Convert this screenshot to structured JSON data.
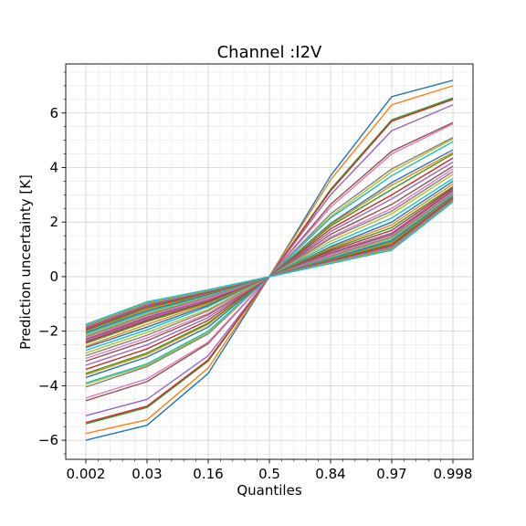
{
  "chart_data": {
    "type": "line",
    "title": "Channel :I2V",
    "xlabel": "Quantiles",
    "ylabel": "Prediction uncertainty [K]",
    "categories": [
      "0.002",
      "0.03",
      "0.16",
      "0.5",
      "0.84",
      "0.97",
      "0.998"
    ],
    "ylim": [
      -6.7,
      7.8
    ],
    "yticks": [
      -6,
      -4,
      -2,
      0,
      2,
      4,
      6
    ],
    "ytick_labels": [
      "−6",
      "−4",
      "−2",
      "0",
      "2",
      "4",
      "6"
    ],
    "grid": true,
    "legend": "none",
    "colors": [
      "#1f77b4",
      "#ff7f0e",
      "#2ca02c",
      "#d62728",
      "#9467bd",
      "#8c564b",
      "#e377c2",
      "#7f7f7f",
      "#bcbd22",
      "#17becf"
    ],
    "series": [
      {
        "values": [
          -6.0,
          -5.45,
          -3.55,
          0,
          3.7,
          6.6,
          7.2
        ]
      },
      {
        "values": [
          -5.75,
          -5.25,
          -3.35,
          0,
          3.55,
          6.3,
          7.0
        ]
      },
      {
        "values": [
          -5.4,
          -4.8,
          -3.1,
          0,
          3.2,
          5.75,
          6.55
        ]
      },
      {
        "values": [
          -5.35,
          -4.75,
          -3.05,
          0,
          3.15,
          5.7,
          6.5
        ]
      },
      {
        "values": [
          -5.1,
          -4.5,
          -2.9,
          0,
          3.0,
          5.35,
          6.3
        ]
      },
      {
        "values": [
          -4.55,
          -3.85,
          -2.45,
          0,
          2.65,
          4.6,
          5.65
        ]
      },
      {
        "values": [
          -4.45,
          -3.75,
          -2.4,
          0,
          2.55,
          4.5,
          5.6
        ]
      },
      {
        "values": [
          -4.05,
          -3.3,
          -2.1,
          0,
          2.3,
          3.95,
          5.1
        ]
      },
      {
        "values": [
          -3.95,
          -3.25,
          -2.05,
          0,
          2.2,
          3.85,
          5.05
        ]
      },
      {
        "values": [
          -3.9,
          -3.2,
          -2.0,
          0,
          2.15,
          3.7,
          4.95
        ]
      },
      {
        "values": [
          -3.7,
          -2.95,
          -1.85,
          0,
          1.95,
          3.45,
          4.65
        ]
      },
      {
        "values": [
          -3.6,
          -2.85,
          -1.75,
          0,
          1.9,
          3.35,
          4.55
        ]
      },
      {
        "values": [
          -3.55,
          -2.8,
          -1.7,
          0,
          1.85,
          3.2,
          4.5
        ]
      },
      {
        "values": [
          -3.4,
          -2.65,
          -1.6,
          0,
          1.75,
          3.0,
          4.35
        ]
      },
      {
        "values": [
          -3.25,
          -2.5,
          -1.5,
          0,
          1.65,
          2.85,
          4.2
        ]
      },
      {
        "values": [
          -3.1,
          -2.35,
          -1.4,
          0,
          1.55,
          2.65,
          4.05
        ]
      },
      {
        "values": [
          -3.0,
          -2.25,
          -1.35,
          0,
          1.45,
          2.5,
          3.95
        ]
      },
      {
        "values": [
          -2.9,
          -2.15,
          -1.25,
          0,
          1.4,
          2.4,
          3.85
        ]
      },
      {
        "values": [
          -2.8,
          -2.05,
          -1.2,
          0,
          1.3,
          2.3,
          3.75
        ]
      },
      {
        "values": [
          -2.7,
          -1.95,
          -1.1,
          0,
          1.2,
          2.15,
          3.6
        ]
      },
      {
        "values": [
          -2.6,
          -1.85,
          -1.05,
          0,
          1.1,
          2.0,
          3.5
        ]
      },
      {
        "values": [
          -2.55,
          -1.75,
          -1.0,
          0,
          1.05,
          1.9,
          3.4
        ]
      },
      {
        "values": [
          -2.45,
          -1.65,
          -0.95,
          0,
          1.0,
          1.8,
          3.3
        ]
      },
      {
        "values": [
          -2.4,
          -1.6,
          -0.9,
          0,
          0.95,
          1.7,
          3.25
        ]
      },
      {
        "values": [
          -2.35,
          -1.55,
          -0.85,
          0,
          0.9,
          1.6,
          3.2
        ]
      },
      {
        "values": [
          -2.3,
          -1.5,
          -0.8,
          0,
          0.85,
          1.55,
          3.15
        ]
      },
      {
        "values": [
          -2.25,
          -1.45,
          -0.8,
          0,
          0.8,
          1.5,
          3.1
        ]
      },
      {
        "values": [
          -2.2,
          -1.4,
          -0.75,
          0,
          0.75,
          1.45,
          3.05
        ]
      },
      {
        "values": [
          -2.15,
          -1.35,
          -0.7,
          0,
          0.7,
          1.4,
          3.0
        ]
      },
      {
        "values": [
          -2.1,
          -1.3,
          -0.68,
          0,
          0.68,
          1.35,
          2.98
        ]
      },
      {
        "values": [
          -2.05,
          -1.25,
          -0.65,
          0,
          0.65,
          1.3,
          2.95
        ]
      },
      {
        "values": [
          -2.0,
          -1.2,
          -0.62,
          0,
          0.62,
          1.25,
          2.92
        ]
      },
      {
        "values": [
          -1.97,
          -1.15,
          -0.6,
          0,
          0.6,
          1.2,
          2.9
        ]
      },
      {
        "values": [
          -1.93,
          -1.1,
          -0.58,
          0,
          0.58,
          1.15,
          2.88
        ]
      },
      {
        "values": [
          -1.9,
          -1.07,
          -0.56,
          0,
          0.56,
          1.12,
          2.85
        ]
      },
      {
        "values": [
          -1.87,
          -1.04,
          -0.55,
          0,
          0.55,
          1.1,
          2.83
        ]
      },
      {
        "values": [
          -1.84,
          -1.01,
          -0.53,
          0,
          0.53,
          1.07,
          2.8
        ]
      },
      {
        "values": [
          -1.81,
          -0.98,
          -0.52,
          0,
          0.52,
          1.04,
          2.78
        ]
      },
      {
        "values": [
          -1.78,
          -0.95,
          -0.5,
          0,
          0.5,
          1.0,
          2.76
        ]
      },
      {
        "values": [
          -1.75,
          -0.92,
          -0.48,
          0,
          0.48,
          0.97,
          2.74
        ]
      }
    ]
  }
}
